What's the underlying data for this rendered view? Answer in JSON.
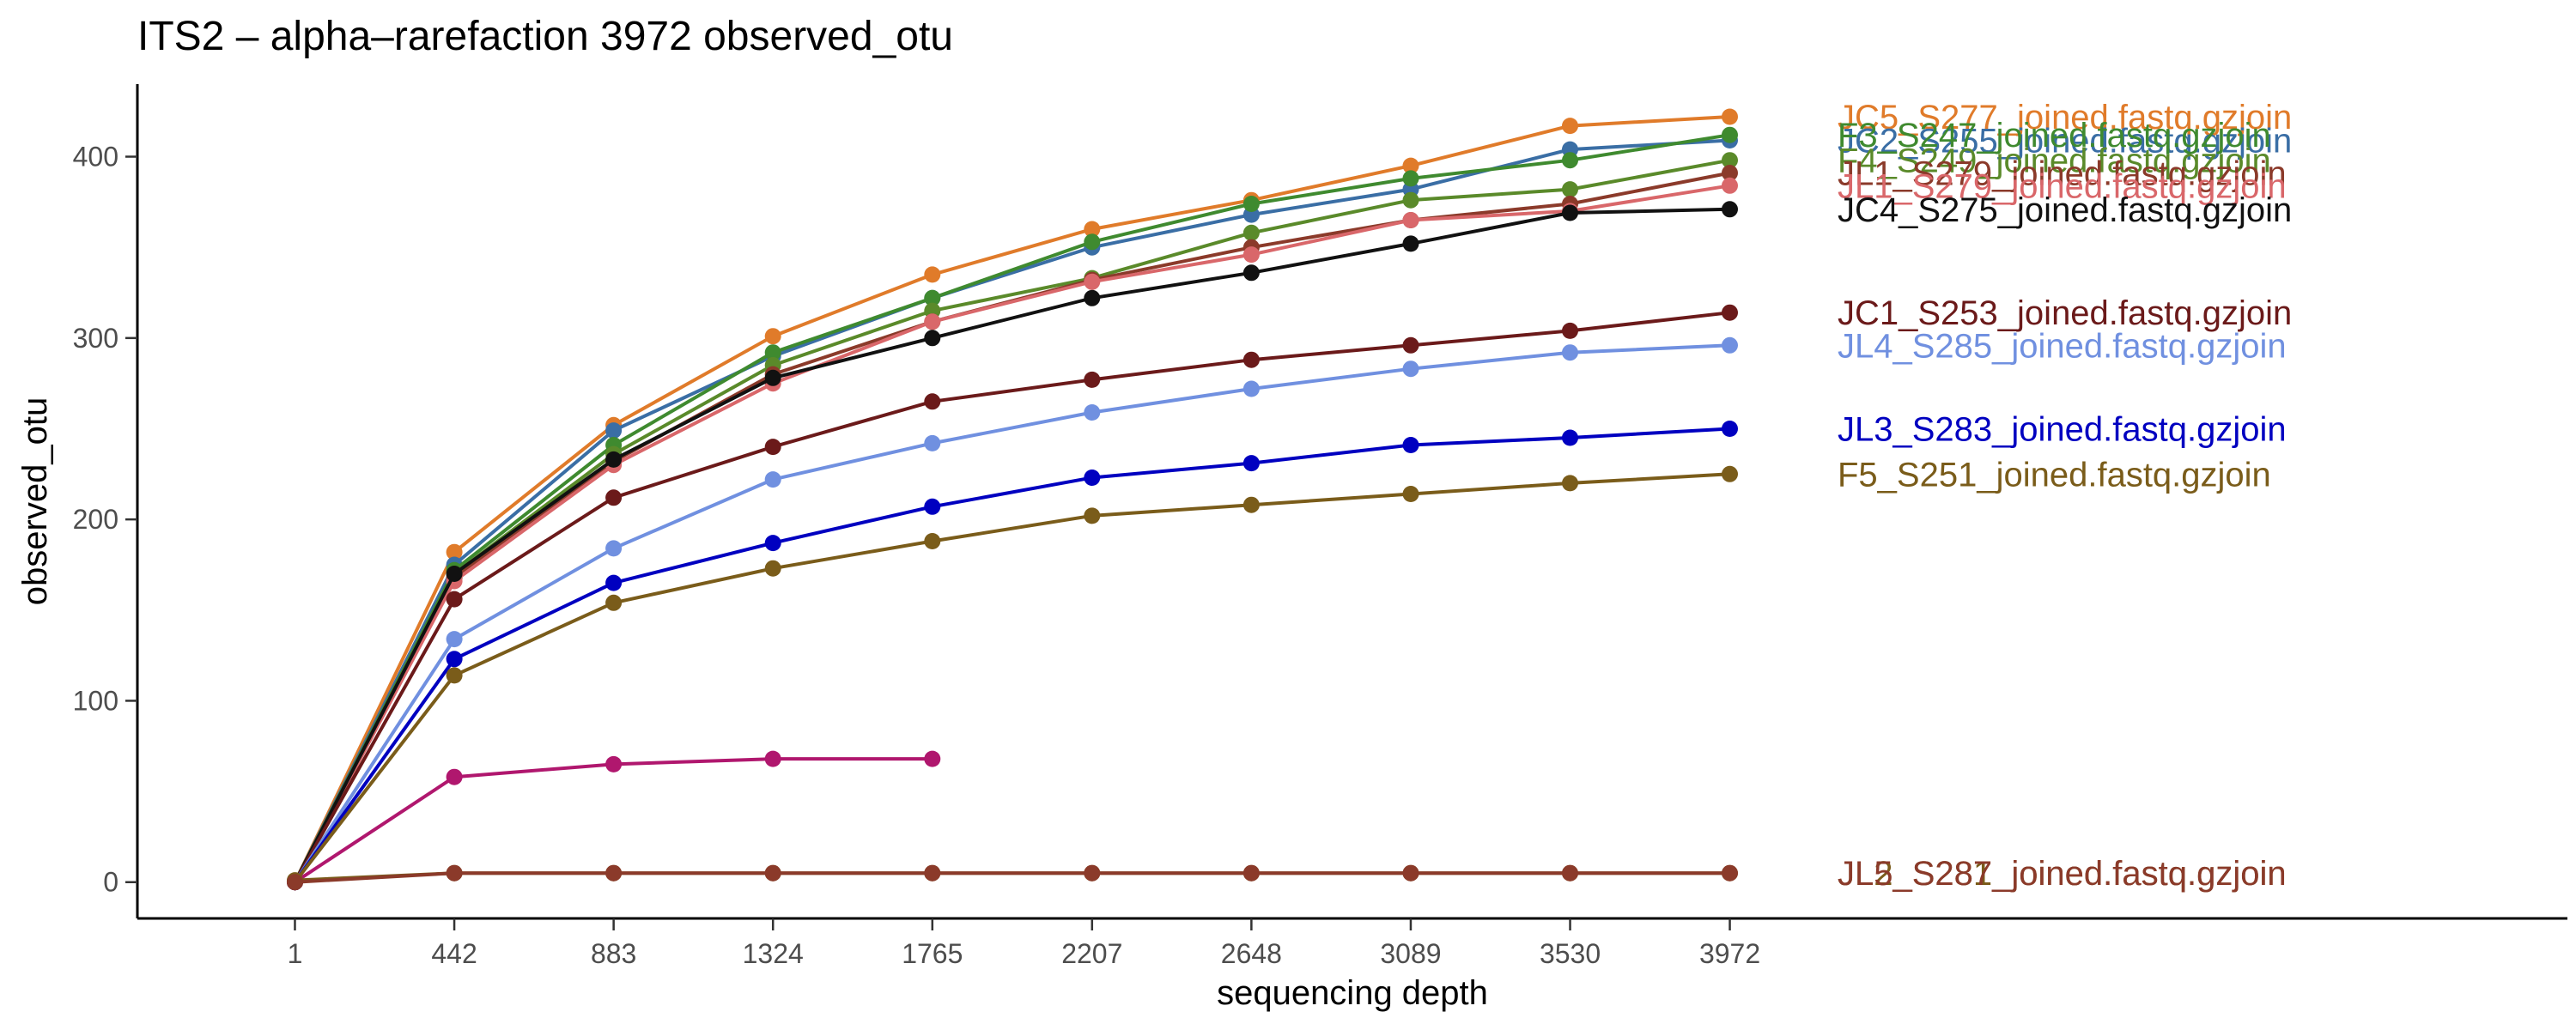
{
  "chart_data": {
    "type": "line",
    "title": "ITS2 – alpha–rarefaction 3972 observed_otu",
    "xlabel": "sequencing depth",
    "ylabel": "observed_otu",
    "x": [
      1,
      442,
      883,
      1324,
      1765,
      2207,
      2648,
      3089,
      3530,
      3972
    ],
    "x_tick_labels": [
      "1",
      "442",
      "883",
      "1324",
      "1765",
      "2207",
      "2648",
      "3089",
      "3530",
      "3972"
    ],
    "xlim": [
      -435,
      6290
    ],
    "ylim": [
      -20,
      440
    ],
    "y_ticks": [
      0,
      100,
      200,
      300,
      400
    ],
    "grid": false,
    "legend": "direct labels at line ends",
    "series": [
      {
        "name": "JC5_S277_joined.fastq.gzjoin",
        "color": "#e07b2a",
        "values": [
          0,
          182,
          252,
          301,
          335,
          360,
          376,
          395,
          417,
          422
        ]
      },
      {
        "name": "JC2_S255_joined.fastq.gzjoin",
        "color": "#3a6ea5",
        "values": [
          0,
          175,
          249,
          290,
          322,
          350,
          368,
          382,
          404,
          409
        ]
      },
      {
        "name": "F3_S247_joined.fastq.gzjoin",
        "color": "#3f8a2f",
        "values": [
          0,
          172,
          241,
          292,
          322,
          353,
          374,
          388,
          398,
          412
        ]
      },
      {
        "name": "F4_S249_joined.fastq.gzjoin",
        "color": "#5a8a2a",
        "values": [
          0,
          170,
          236,
          285,
          315,
          333,
          358,
          376,
          382,
          398
        ]
      },
      {
        "name": "JL1_S279_joined.fastq.gzjoin",
        "color": "#8b3a2a",
        "values": [
          0,
          168,
          232,
          280,
          309,
          332,
          350,
          365,
          374,
          391
        ]
      },
      {
        "name": "JL1_S279_joined.fastq.gzjoin",
        "color": "#d9676a",
        "values": [
          0,
          166,
          230,
          275,
          309,
          331,
          346,
          365,
          370,
          384
        ]
      },
      {
        "name": "JC4_S275_joined.fastq.gzjoin",
        "color": "#111111",
        "values": [
          0,
          170,
          233,
          278,
          300,
          322,
          336,
          352,
          369,
          371
        ]
      },
      {
        "name": "JC1_S253_joined.fastq.gzjoin",
        "color": "#6b1a1a",
        "values": [
          0,
          156,
          212,
          240,
          265,
          277,
          288,
          296,
          304,
          314
        ]
      },
      {
        "name": "JL4_S285_joined.fastq.gzjoin",
        "color": "#7090e0",
        "values": [
          0,
          134,
          184,
          222,
          242,
          259,
          272,
          283,
          292,
          296
        ]
      },
      {
        "name": "JL3_S283_joined.fastq.gzjoin",
        "color": "#0000c0",
        "values": [
          0,
          123,
          165,
          187,
          207,
          223,
          231,
          241,
          245,
          250
        ]
      },
      {
        "name": "F5_S251_joined.fastq.gzjoin",
        "color": "#7a5c1a",
        "values": [
          0,
          114,
          154,
          173,
          188,
          202,
          208,
          214,
          220,
          225
        ]
      },
      {
        "name": "",
        "color": "#b0176e",
        "values": [
          0,
          58,
          65,
          68,
          68,
          null,
          null,
          null,
          null,
          null
        ]
      },
      {
        "name": "JL2_S281_joined.fastq.gzjoin",
        "color": "#7a5c1a",
        "values": [
          1,
          5,
          5,
          5,
          5,
          5,
          5,
          5,
          5,
          5
        ]
      },
      {
        "name": "JL5_S287_joined.fastq.gzjoin",
        "color": "#8b3a2a",
        "values": [
          0,
          5,
          5,
          5,
          5,
          5,
          5,
          5,
          5,
          5
        ]
      }
    ]
  }
}
